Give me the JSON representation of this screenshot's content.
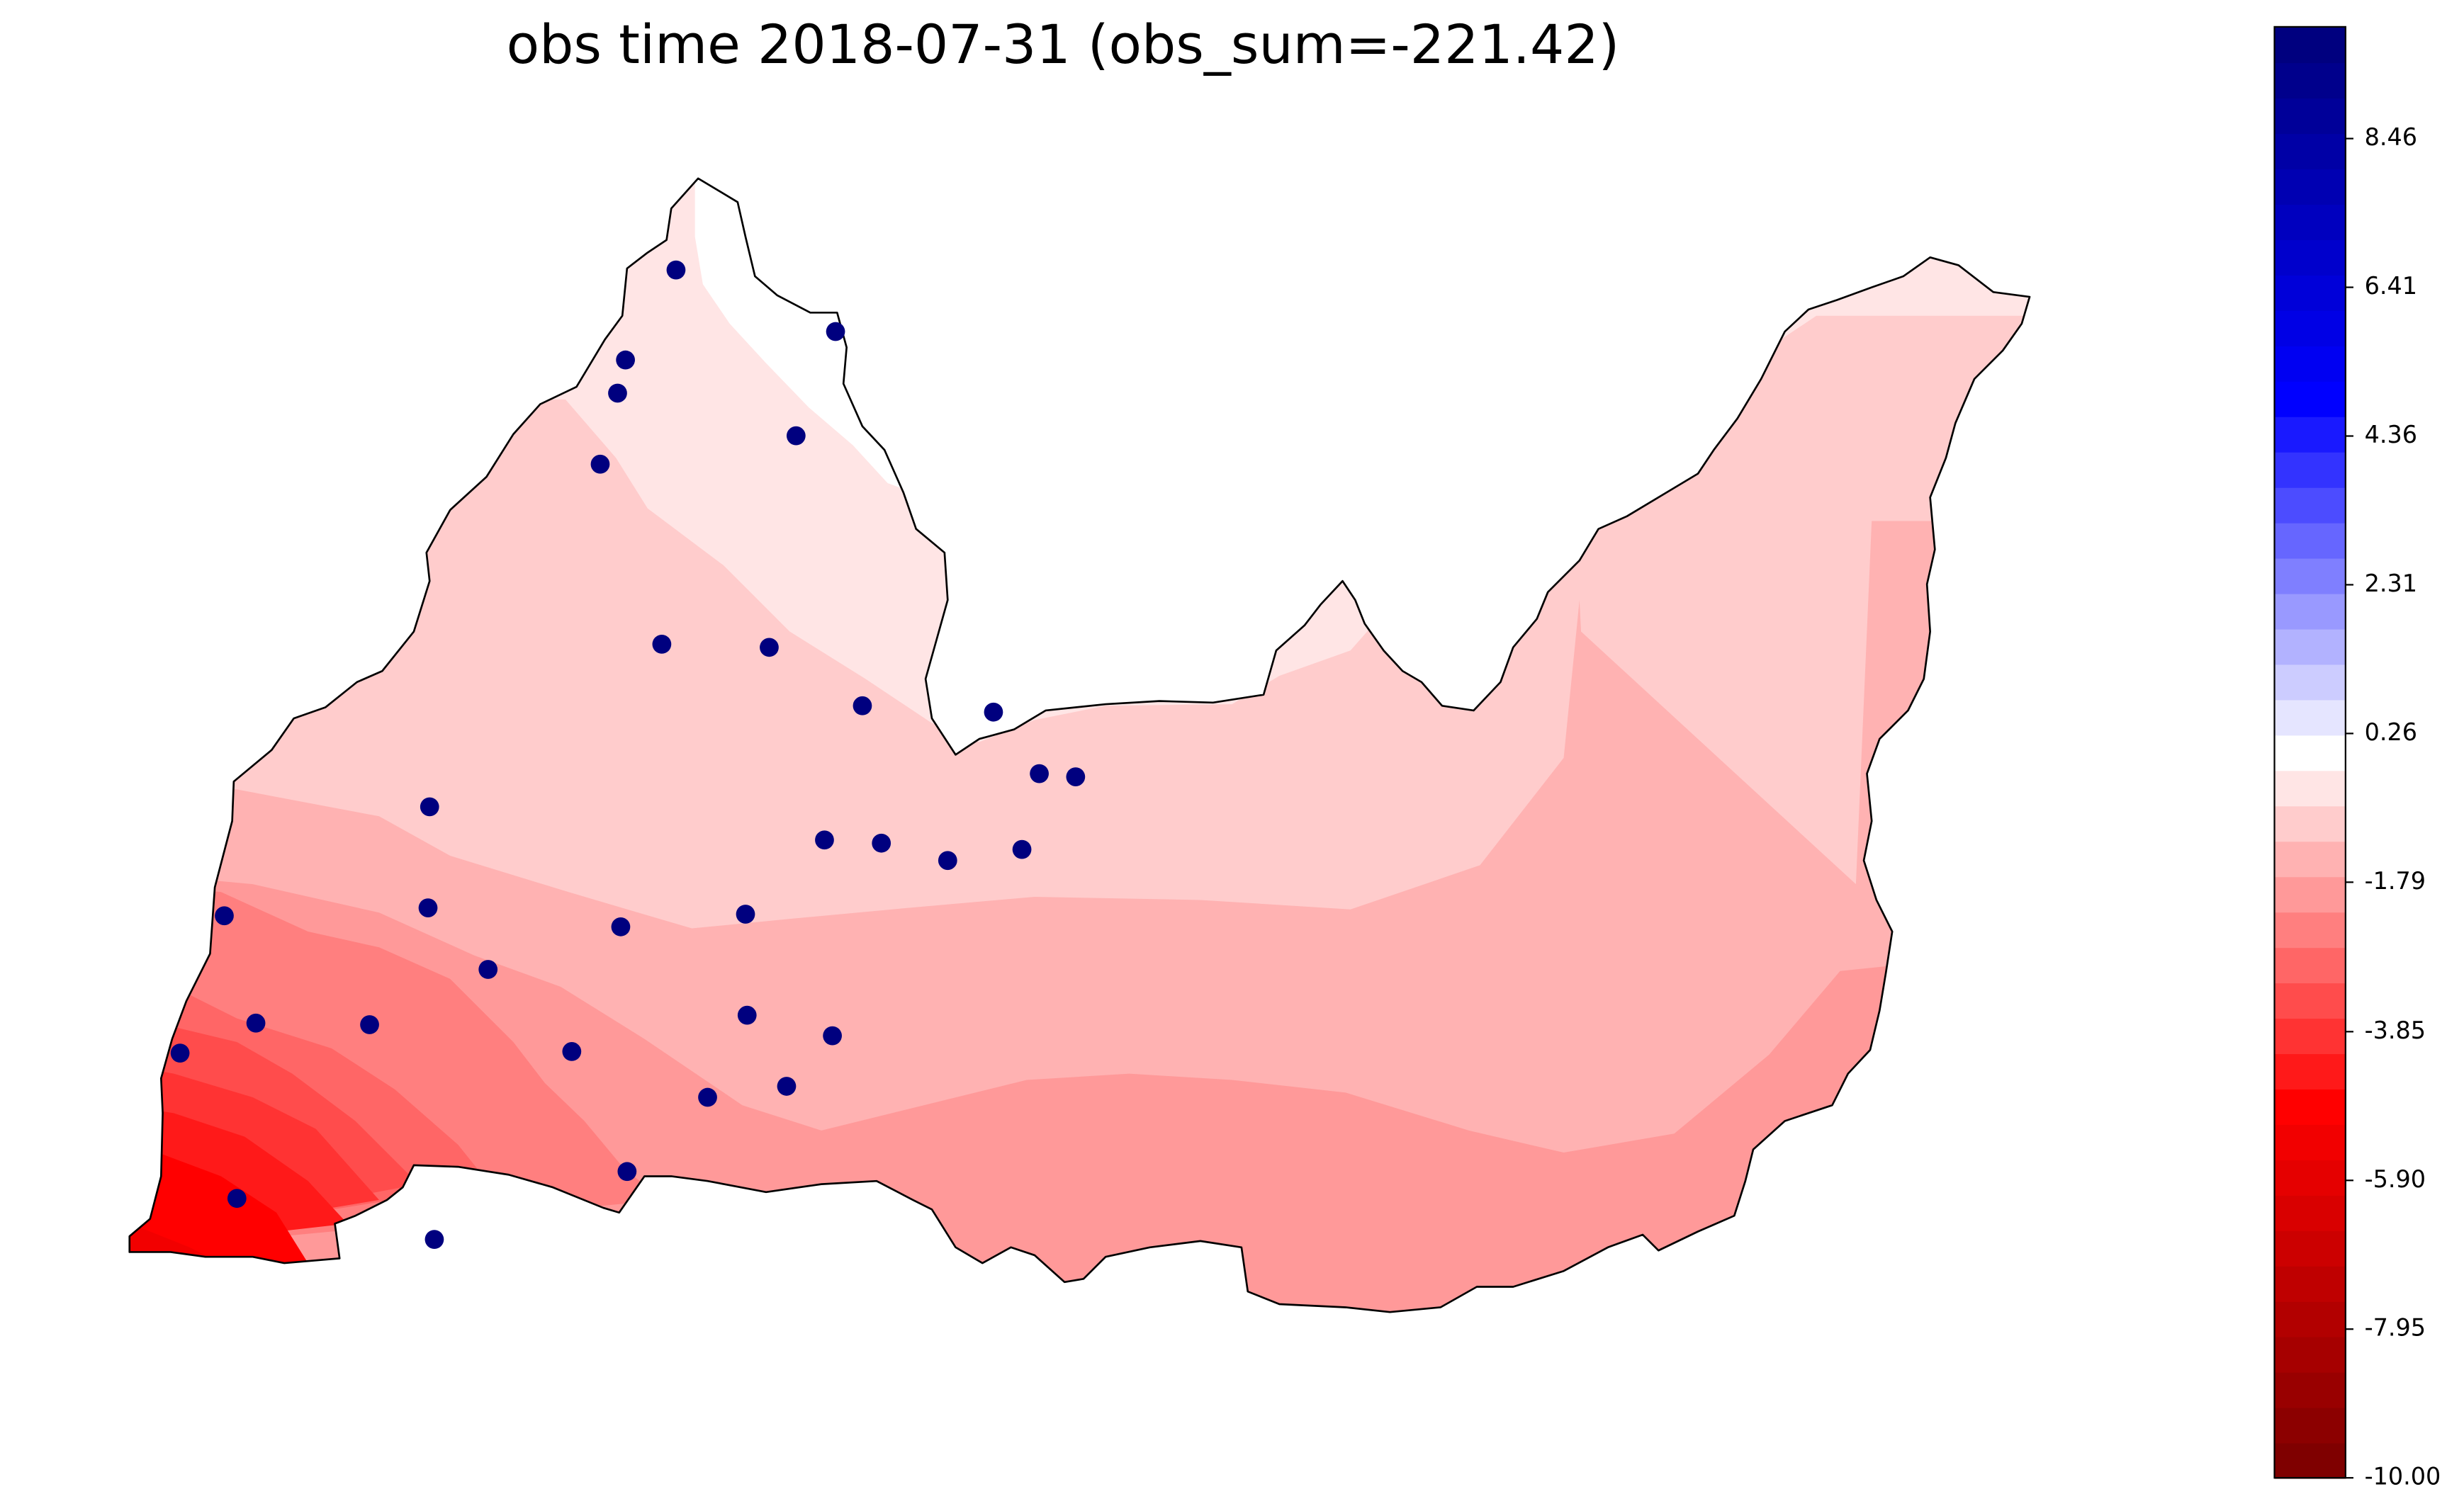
{
  "title": "obs time 2018-07-31 (obs_sum=-221.42)",
  "map": {
    "value_range": [
      -10.0,
      10.0
    ],
    "station_color": "#00007f",
    "stations": [
      [
        428,
        171
      ],
      [
        529,
        210
      ],
      [
        396,
        228
      ],
      [
        391,
        249
      ],
      [
        504,
        276
      ],
      [
        380,
        294
      ],
      [
        419,
        408
      ],
      [
        487,
        410
      ],
      [
        546,
        447
      ],
      [
        629,
        451
      ],
      [
        658,
        490
      ],
      [
        681,
        492
      ],
      [
        272,
        511
      ],
      [
        522,
        532
      ],
      [
        558,
        534
      ],
      [
        600,
        545
      ],
      [
        647,
        538
      ],
      [
        142,
        580
      ],
      [
        271,
        575
      ],
      [
        393,
        587
      ],
      [
        472,
        579
      ],
      [
        309,
        614
      ],
      [
        162,
        648
      ],
      [
        234,
        649
      ],
      [
        473,
        643
      ],
      [
        527,
        656
      ],
      [
        114,
        667
      ],
      [
        362,
        666
      ],
      [
        448,
        695
      ],
      [
        498,
        688
      ],
      [
        397,
        742
      ],
      [
        150,
        759
      ],
      [
        275,
        785
      ]
    ]
  },
  "colorbar": {
    "tick_labels": [
      "8.46",
      "6.41",
      "4.36",
      "2.31",
      "0.26",
      "-1.79",
      "-3.85",
      "-5.90",
      "-7.95",
      "-10.00"
    ],
    "tick_values": [
      8.46,
      6.41,
      4.36,
      2.31,
      0.26,
      -1.79,
      -3.85,
      -5.9,
      -7.95,
      -10.0
    ],
    "colors": [
      "#7f0000",
      "#8c0000",
      "#990000",
      "#a60000",
      "#b20000",
      "#bf0000",
      "#cc0000",
      "#d90000",
      "#e50000",
      "#f20000",
      "#ff0000",
      "#ff1919",
      "#ff3333",
      "#ff4c4c",
      "#ff6666",
      "#ff7f7f",
      "#ff9999",
      "#ffb2b2",
      "#ffcccc",
      "#ffe5e5",
      "#ffffff",
      "#e5e5ff",
      "#ccccff",
      "#b2b2ff",
      "#9999ff",
      "#7f7fff",
      "#6666ff",
      "#4c4cff",
      "#3333ff",
      "#1919ff",
      "#0000ff",
      "#0000f2",
      "#0000e5",
      "#0000d9",
      "#0000cc",
      "#0000bf",
      "#0000b2",
      "#0000a6",
      "#000099",
      "#00008c",
      "#00007f"
    ]
  }
}
